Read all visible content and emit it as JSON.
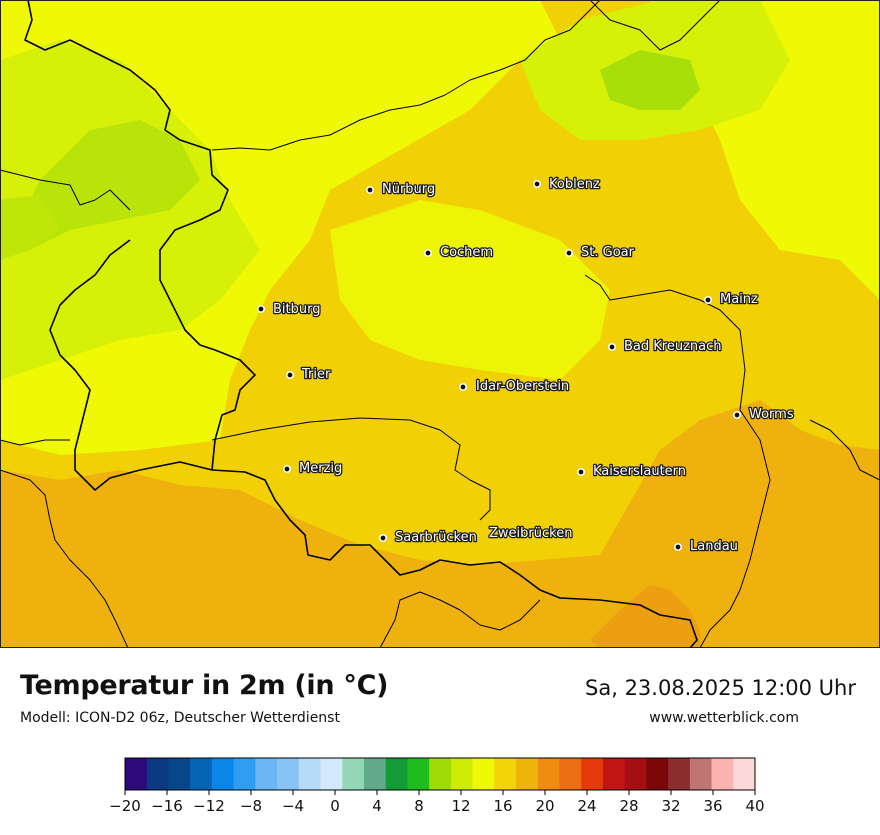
{
  "map": {
    "cities": [
      {
        "name": "Nürburg"
      },
      {
        "name": "Koblenz"
      },
      {
        "name": "Cochem"
      },
      {
        "name": "St. Goar"
      },
      {
        "name": "Mainz"
      },
      {
        "name": "Bitburg"
      },
      {
        "name": "Bad Kreuznach"
      },
      {
        "name": "Trier"
      },
      {
        "name": "Idar-Oberstein"
      },
      {
        "name": "Worms"
      },
      {
        "name": "Merzig"
      },
      {
        "name": "Kaiserslautern"
      },
      {
        "name": "Saarbrücken"
      },
      {
        "name": "Zweibrücken"
      },
      {
        "name": "Landau"
      }
    ]
  },
  "header": {
    "title": "Temperatur in 2m (in °C)",
    "model": "Modell: ICON-D2 06z, Deutscher Wetterdienst",
    "datetime": "Sa, 23.08.2025 12:00 Uhr",
    "website": "www.wetterblick.com"
  },
  "legend": {
    "unit": "°C",
    "range": [
      -20,
      40
    ],
    "step": 2,
    "colors": [
      "#2d0a7a",
      "#0b3a82",
      "#07468a",
      "#0664b4",
      "#0c86e6",
      "#309cf2",
      "#6cb6f5",
      "#88c3f6",
      "#b6dbf9",
      "#d3e8fb",
      "#94d7b5",
      "#62ab8a",
      "#139c36",
      "#1fbd1c",
      "#9edb06",
      "#cdec06",
      "#f0f905",
      "#f3d407",
      "#efb50c",
      "#ee8b10",
      "#ec6e12",
      "#e63a0d",
      "#bf1514",
      "#a40f14",
      "#7c0708",
      "#8b2d2e",
      "#c07575",
      "#fab4b0",
      "#fbd9d9"
    ],
    "tick_labels": [
      "−20",
      "−16",
      "−12",
      "−8",
      "−4",
      "0",
      "4",
      "8",
      "12",
      "16",
      "20",
      "24",
      "28",
      "32",
      "36",
      "40"
    ]
  },
  "colors": {
    "warm_orange": "#eeb10e",
    "orange_yellow": "#f1d005",
    "yellow": "#f0f905",
    "yellow_green": "#cdec06",
    "green": "#9edb06"
  }
}
